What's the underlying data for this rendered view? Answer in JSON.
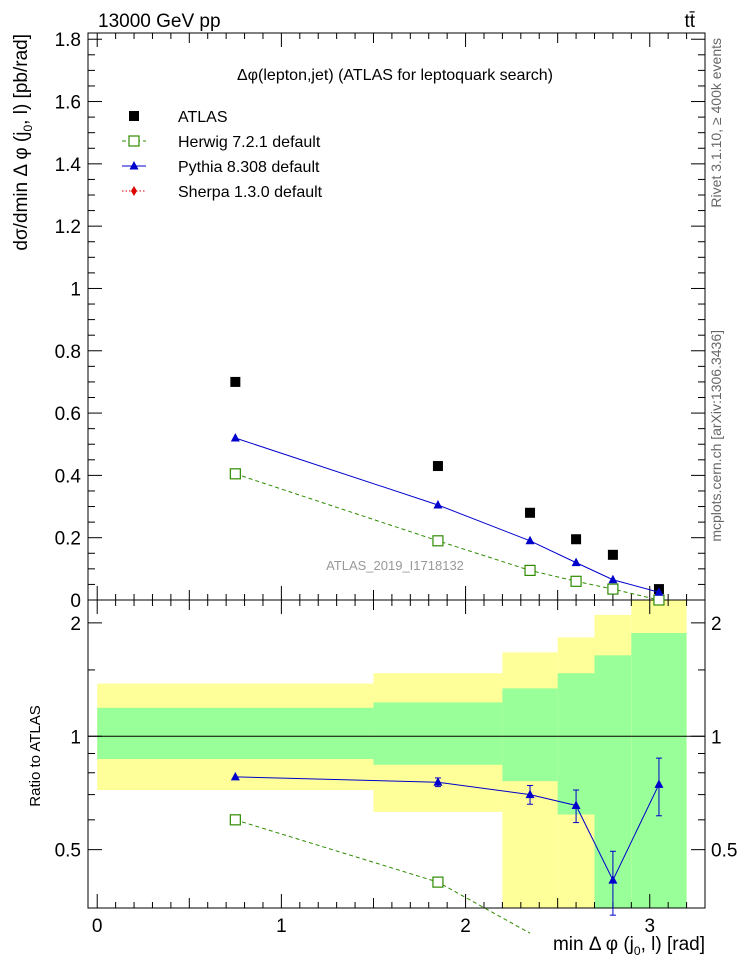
{
  "header": {
    "energy_label": "13000 GeV pp",
    "process_label": "tt̄"
  },
  "side_labels": {
    "rivet": "Rivet 3.1.10, ≥ 400k events",
    "mcplots": "mcplots.cern.ch [arXiv:1306.3436]"
  },
  "chart_data": {
    "type": "scatter",
    "title": "Δφ(lepton,jet) (ATLAS for leptoquark search)",
    "watermark": "ATLAS_2019_I1718132",
    "xlabel": "min Δ φ (j0, l) [rad]",
    "xlim": [
      -0.05,
      3.3
    ],
    "x_ticks": [
      0,
      1,
      2,
      3
    ],
    "main": {
      "ylabel": "dσ/dmin Δ φ (j0, l) [pb/rad]",
      "ylim": [
        0,
        1.82
      ],
      "y_ticks": [
        0,
        0.2,
        0.4,
        0.6,
        0.8,
        1,
        1.2,
        1.4,
        1.6,
        1.8
      ],
      "y_tick_labels": [
        "0",
        "0.2",
        "0.4",
        "0.6",
        "0.8",
        "1",
        "1.2",
        "1.4",
        "1.6",
        "1.8"
      ],
      "x_values": [
        0.75,
        1.85,
        2.35,
        2.6,
        2.8,
        3.05
      ],
      "series": [
        {
          "name": "ATLAS",
          "marker": "square-filled",
          "color": "#000000",
          "values": [
            0.7,
            0.43,
            0.28,
            0.195,
            0.145,
            0.035
          ]
        },
        {
          "name": "Herwig 7.2.1 default",
          "marker": "square-open",
          "line": "dashed",
          "color": "#2e8b00",
          "values": [
            0.405,
            0.19,
            0.095,
            0.06,
            0.035,
            0.0
          ]
        },
        {
          "name": "Pythia 8.308 default",
          "marker": "triangle",
          "line": "solid",
          "color": "#0000cc",
          "values": [
            0.52,
            0.305,
            0.19,
            0.12,
            0.065,
            0.025
          ]
        },
        {
          "name": "Sherpa 1.3.0 default",
          "marker": "diamond",
          "line": "dotted",
          "color": "#dd0000",
          "values": []
        }
      ]
    },
    "ratio": {
      "ylabel": "Ratio to ATLAS",
      "ylim": [
        0.35,
        2.3
      ],
      "y_ticks": [
        0.5,
        1,
        2
      ],
      "y_tick_labels": [
        "0.5",
        "1",
        "2"
      ],
      "bins": [
        {
          "lo": 0.0,
          "hi": 1.5,
          "green": [
            0.87,
            1.19
          ],
          "yellow": [
            0.72,
            1.38
          ]
        },
        {
          "lo": 1.5,
          "hi": 2.2,
          "green": [
            0.84,
            1.23
          ],
          "yellow": [
            0.63,
            1.47
          ]
        },
        {
          "lo": 2.2,
          "hi": 2.5,
          "green": [
            0.76,
            1.34
          ],
          "yellow": [
            0.35,
            1.67
          ]
        },
        {
          "lo": 2.5,
          "hi": 2.7,
          "green": [
            0.62,
            1.47
          ],
          "yellow": [
            0.35,
            1.83
          ]
        },
        {
          "lo": 2.7,
          "hi": 2.9,
          "green": [
            0.35,
            1.64
          ],
          "yellow": [
            0.35,
            2.1
          ]
        },
        {
          "lo": 2.9,
          "hi": 3.2,
          "green": [
            0.35,
            1.88
          ],
          "yellow": [
            0.35,
            2.3
          ]
        }
      ],
      "band_colors": {
        "green": "#99ff99",
        "yellow": "#ffff99"
      },
      "herwig": {
        "x": [
          0.75,
          1.85,
          2.35
        ],
        "y": [
          0.6,
          0.41,
          0.3
        ]
      },
      "pythia": {
        "x": [
          0.75,
          1.85,
          2.35,
          2.6,
          2.8,
          3.05
        ],
        "y": [
          0.78,
          0.755,
          0.7,
          0.655,
          0.415,
          0.745
        ],
        "err": [
          0.0,
          0.02,
          0.04,
          0.065,
          0.08,
          0.13
        ]
      }
    }
  }
}
